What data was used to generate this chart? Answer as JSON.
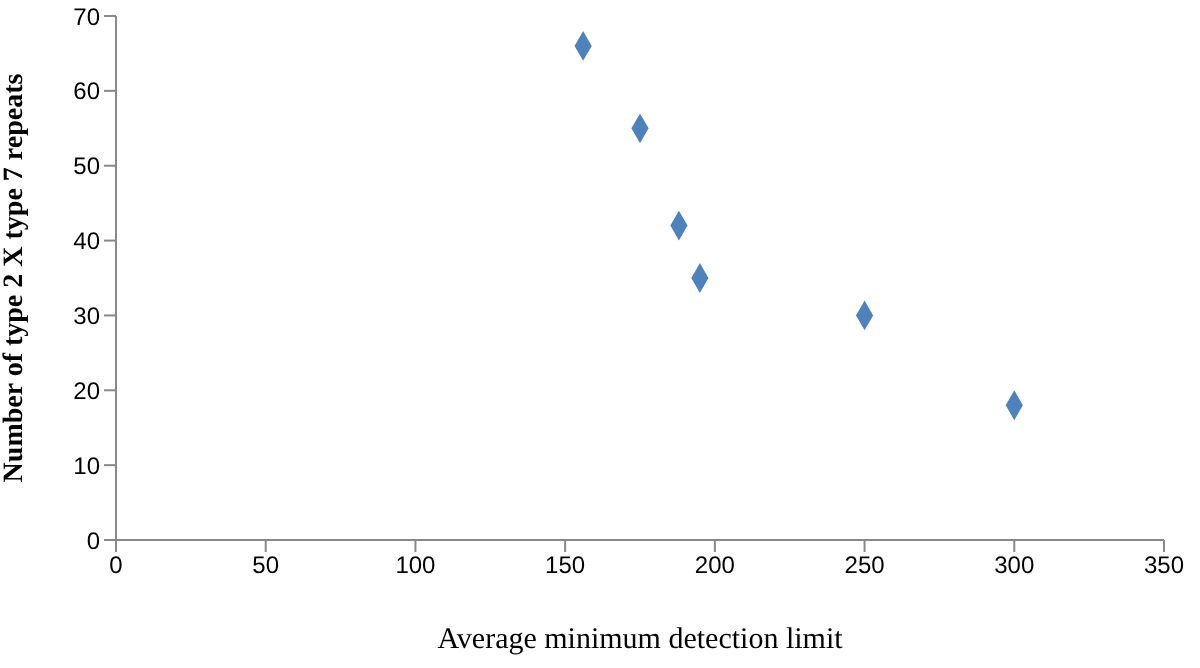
{
  "chart_data": {
    "type": "scatter",
    "xlabel": "Average minimum detection limit",
    "ylabel": "Number of type 2 X type 7 repeats",
    "x": [
      156,
      175,
      188,
      195,
      250,
      300
    ],
    "values": [
      66,
      55,
      42,
      35,
      30,
      18
    ],
    "color": "#4f81bd",
    "marker": "diamond",
    "xlim": [
      0,
      350
    ],
    "xticks": [
      0,
      50,
      100,
      150,
      200,
      250,
      300,
      350
    ],
    "ylim": [
      0,
      70
    ],
    "yticks": [
      0,
      10,
      20,
      30,
      40,
      50,
      60,
      70
    ]
  }
}
